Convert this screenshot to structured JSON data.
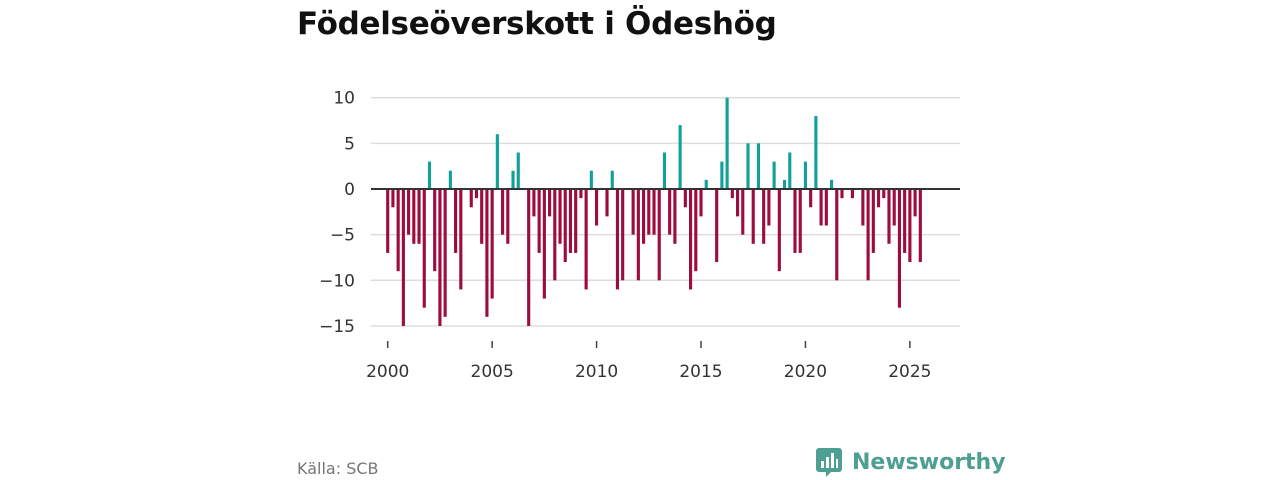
{
  "chart_data": {
    "type": "bar",
    "title": "Födelseöverskott i Ödeshög",
    "xlabel": "",
    "ylabel": "",
    "ylim": [
      -16,
      10
    ],
    "xlim": [
      1999.2,
      2027.4
    ],
    "yticks": [
      10,
      5,
      0,
      -5,
      -10,
      -15
    ],
    "ytick_labels": [
      "10",
      "5",
      "0",
      "−5",
      "−10",
      "−15"
    ],
    "xticks": [
      2000,
      2005,
      2010,
      2015,
      2020,
      2025
    ],
    "xtick_labels": [
      "2000",
      "2005",
      "2010",
      "2015",
      "2020",
      "2025"
    ],
    "grid": true,
    "positive_color": "#11a09a",
    "negative_color": "#9c0c3f",
    "start_year": 2000,
    "period": "quarter",
    "values": [
      -7,
      -2,
      -9,
      -15,
      -5,
      -6,
      -6,
      -13,
      3,
      -9,
      -15,
      -14,
      2,
      -7,
      -11,
      0,
      -2,
      -1,
      -6,
      -14,
      -12,
      6,
      -5,
      -6,
      2,
      4,
      0,
      -15,
      -3,
      -7,
      -12,
      -3,
      -10,
      -6,
      -8,
      -7,
      -7,
      -1,
      -11,
      2,
      -4,
      0,
      -3,
      2,
      -11,
      -10,
      0,
      -5,
      -10,
      -6,
      -5,
      -5,
      -10,
      4,
      -5,
      -6,
      7,
      -2,
      -11,
      -9,
      -3,
      1,
      0,
      -8,
      3,
      10,
      -1,
      -3,
      -5,
      5,
      -6,
      5,
      -6,
      -4,
      3,
      -9,
      1,
      4,
      -7,
      -7,
      3,
      -2,
      8,
      -4,
      -4,
      1,
      -10,
      -1,
      0,
      -1,
      0,
      -4,
      -10,
      -7,
      -2,
      -1,
      -6,
      -4,
      -13,
      -7,
      -8,
      -3,
      -8
    ]
  },
  "source": "Källa: SCB",
  "brand": {
    "name": "Newsworthy",
    "icon": "bar-chart-bubble-icon",
    "color": "#4e9e92"
  }
}
